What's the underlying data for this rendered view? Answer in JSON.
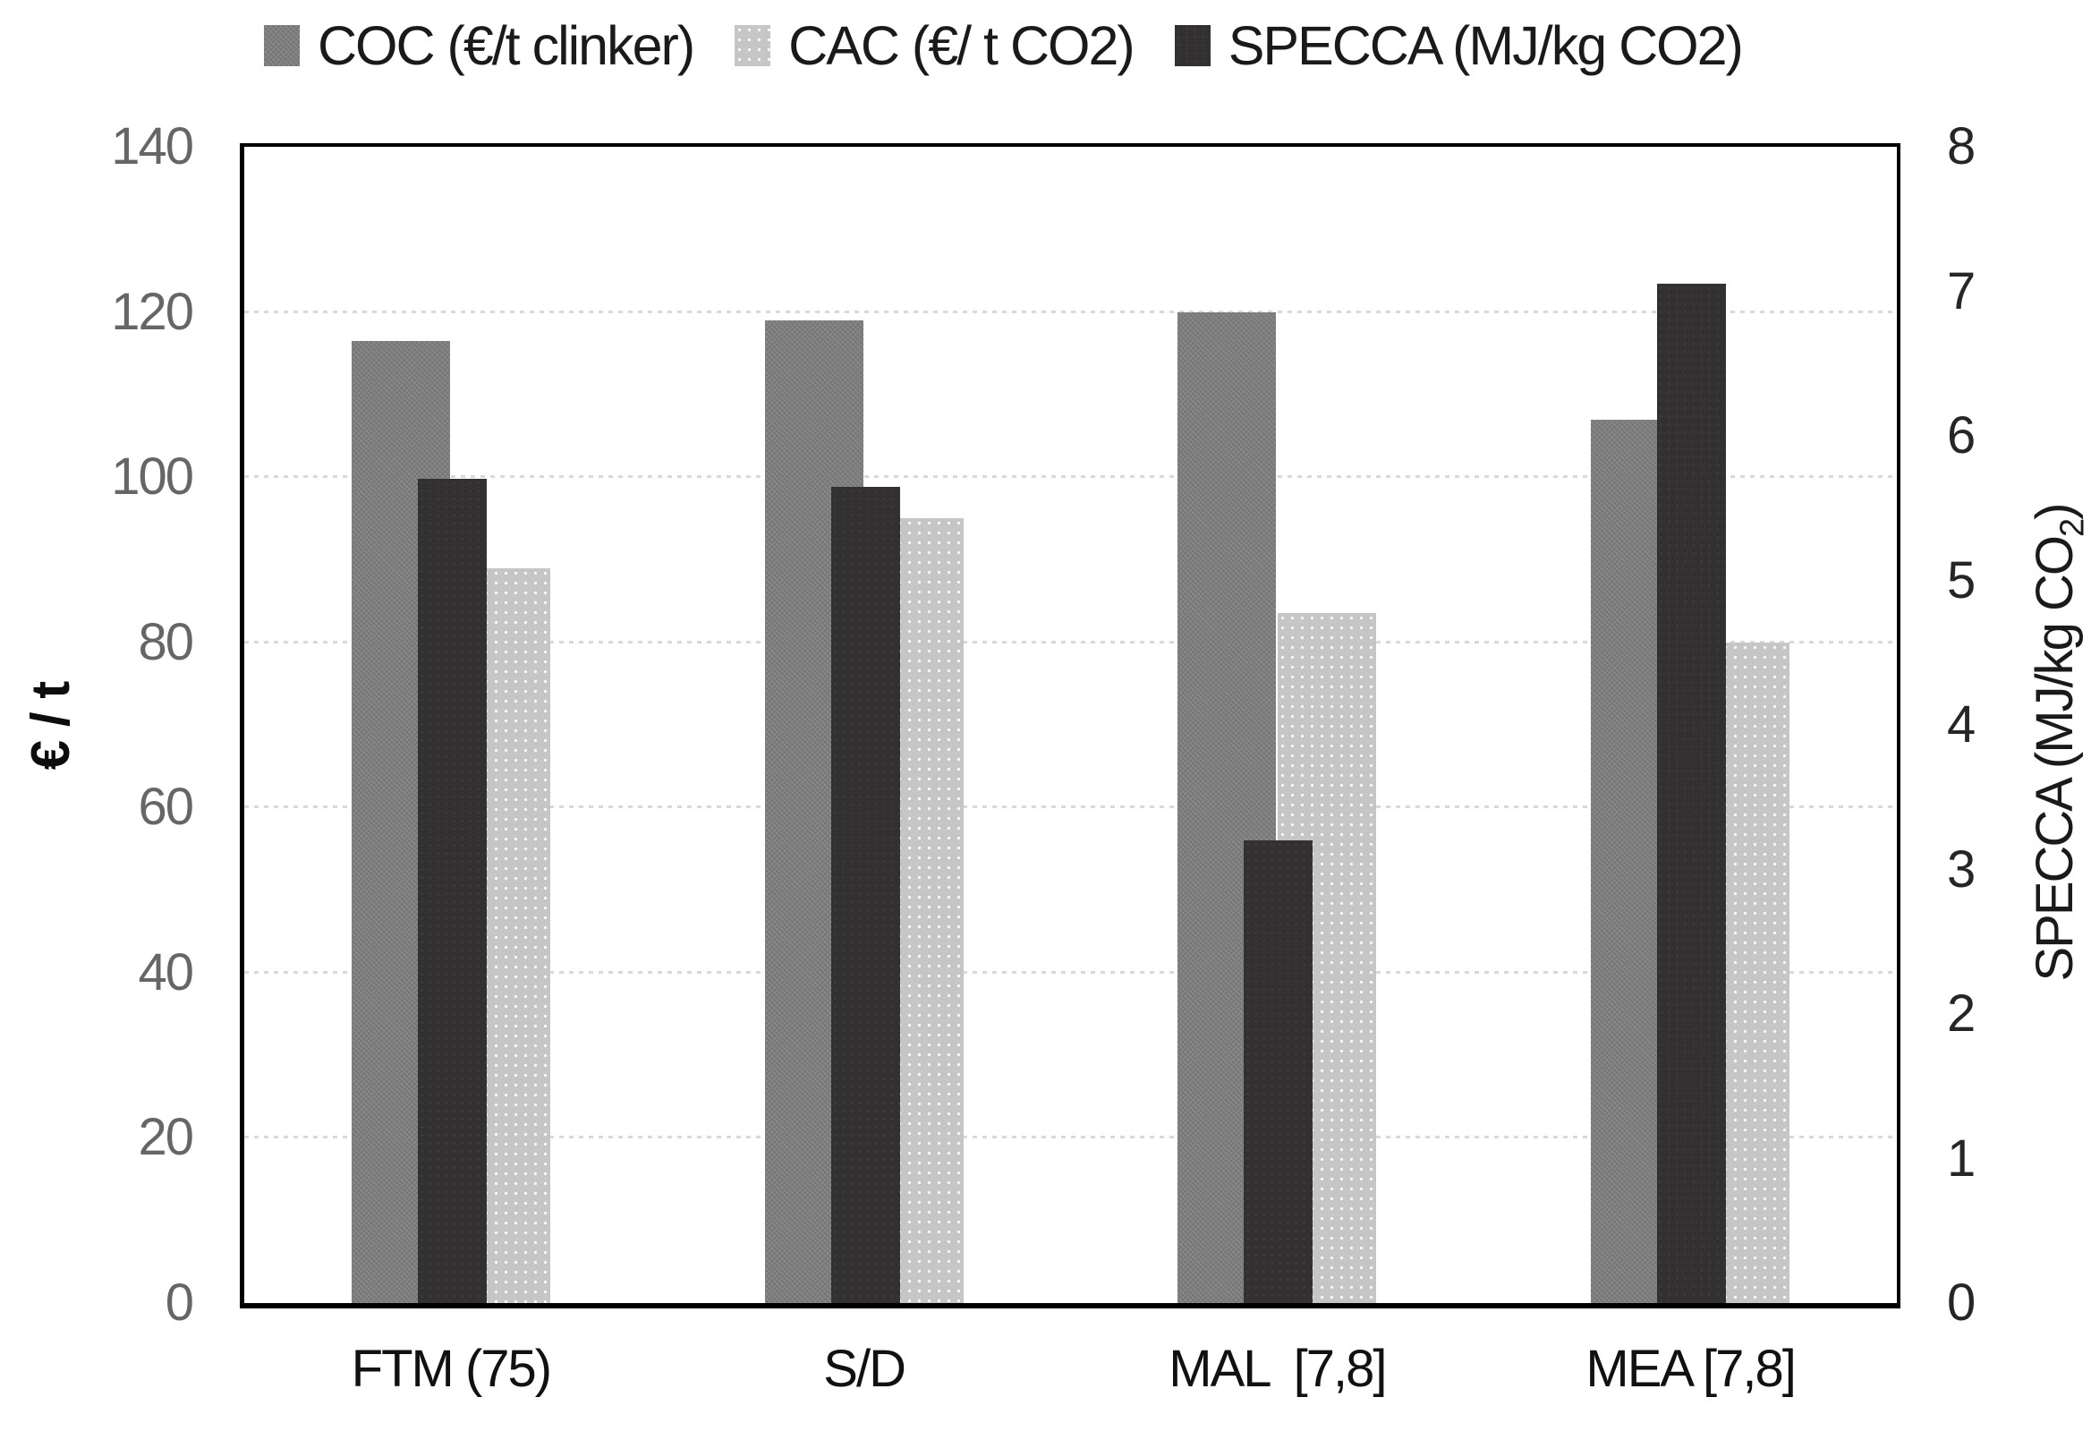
{
  "chart_data": {
    "type": "bar",
    "title": "",
    "categories": [
      "FTM (75)",
      "S/D",
      "MAL  [7,8]",
      "MEA [7,8]"
    ],
    "series": [
      {
        "key": "coc",
        "name": "COC (€/t clinker)",
        "axis": "left",
        "color": "#7d7d7d",
        "values": [
          116.5,
          119,
          120,
          107
        ]
      },
      {
        "key": "cac",
        "name": "CAC (€/ t CO2)",
        "axis": "left",
        "color": "#c6c6c6",
        "values": [
          89,
          95,
          83.5,
          80
        ]
      },
      {
        "key": "specca",
        "name": "SPECCA (MJ/kg CO2)",
        "axis": "right",
        "color": "#333031",
        "values": [
          5.7,
          5.65,
          3.2,
          7.05
        ]
      }
    ],
    "left_axis": {
      "label": "€ / t",
      "min": 0,
      "max": 140,
      "tick_step": 20,
      "ticks": [
        0,
        20,
        40,
        60,
        80,
        100,
        120,
        140
      ]
    },
    "right_axis": {
      "label": "SPECCA (MJ/kg CO2)",
      "label_pre": "SPECCA (MJ/kg CO",
      "label_sub": "2",
      "label_post": ")",
      "min": 0,
      "max": 8,
      "tick_step": 1,
      "ticks": [
        0,
        1,
        2,
        3,
        4,
        5,
        6,
        7,
        8
      ]
    },
    "gridlines": {
      "values": [
        20,
        40,
        60,
        80,
        100,
        120
      ],
      "style": "dotted",
      "color": "#d9d9d9"
    },
    "legend_position": "top",
    "plot_border_color": "#000000"
  },
  "legend": {
    "items": [
      {
        "label": "COC (€/t clinker)",
        "series_key": "coc"
      },
      {
        "label": "CAC (€/ t CO2)",
        "series_key": "cac"
      },
      {
        "label": "SPECCA (MJ/kg CO2)",
        "series_key": "specca"
      }
    ]
  },
  "colors": {
    "coc_bar": "#7d7d7d",
    "cac_bar": "#c6c6c6",
    "specca_bar": "#333031",
    "gridline": "#d9d9d9",
    "left_tick_text": "#666666",
    "right_tick_text": "#262626",
    "category_text": "#111111",
    "legend_text": "#1a1a1a",
    "axis_border": "#000000"
  }
}
